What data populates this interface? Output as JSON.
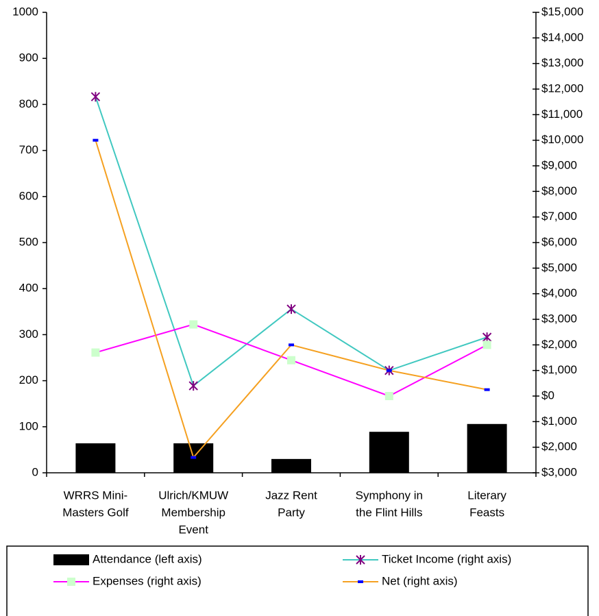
{
  "chart_data": {
    "type": "bar-line",
    "categories": [
      [
        "WRRS Mini-",
        "Masters Golf"
      ],
      [
        "Ulrich/KMUW",
        "Membership",
        "Event"
      ],
      [
        "Jazz Rent",
        "Party"
      ],
      [
        "Symphony in",
        "the Flint Hills"
      ],
      [
        "Literary",
        "Feasts"
      ]
    ],
    "series": [
      {
        "name": "Attendance (left axis)",
        "type": "bar",
        "color": "#000000",
        "values": [
          64,
          64,
          30,
          89,
          106
        ]
      },
      {
        "name": "Ticket Income (right axis)",
        "type": "line",
        "axis": "y2",
        "color": "#40c8c0",
        "marker": "x",
        "marker_color": "#800080",
        "values": [
          11700,
          400,
          3400,
          1000,
          2300
        ]
      },
      {
        "name": "Expenses (right axis)",
        "type": "line",
        "axis": "y2",
        "color": "#ff00ff",
        "marker": "square",
        "marker_color": "#ccffcc",
        "values": [
          1700,
          2800,
          1400,
          0,
          2000
        ]
      },
      {
        "name": "Net (right axis)",
        "type": "line",
        "axis": "y2",
        "color": "#f5a020",
        "marker": "dash",
        "marker_color": "#0000ff",
        "values": [
          10000,
          -2400,
          2000,
          1000,
          250
        ]
      }
    ],
    "ylim": [
      0,
      1000
    ],
    "yticks": [
      0,
      100,
      200,
      300,
      400,
      500,
      600,
      700,
      800,
      900,
      1000
    ],
    "y2lim": [
      -3000,
      15000
    ],
    "y2ticks": [
      {
        "value": -3000,
        "label": "$3,000"
      },
      {
        "value": -2000,
        "label": "$2,000"
      },
      {
        "value": -1000,
        "label": "$1,000"
      },
      {
        "value": 0,
        "label": "$0"
      },
      {
        "value": 1000,
        "label": "$1,000"
      },
      {
        "value": 2000,
        "label": "$2,000"
      },
      {
        "value": 3000,
        "label": "$3,000"
      },
      {
        "value": 4000,
        "label": "$4,000"
      },
      {
        "value": 5000,
        "label": "$5,000"
      },
      {
        "value": 6000,
        "label": "$6,000"
      },
      {
        "value": 7000,
        "label": "$7,000"
      },
      {
        "value": 8000,
        "label": "$8,000"
      },
      {
        "value": 9000,
        "label": "$9,000"
      },
      {
        "value": 10000,
        "label": "$10,000"
      },
      {
        "value": 11000,
        "label": "$11,000"
      },
      {
        "value": 12000,
        "label": "$12,000"
      },
      {
        "value": 13000,
        "label": "$13,000"
      },
      {
        "value": 14000,
        "label": "$14,000"
      },
      {
        "value": 15000,
        "label": "$15,000"
      }
    ],
    "negative_tick_color": "#ff0000",
    "grid": false,
    "legend": "bottom"
  }
}
